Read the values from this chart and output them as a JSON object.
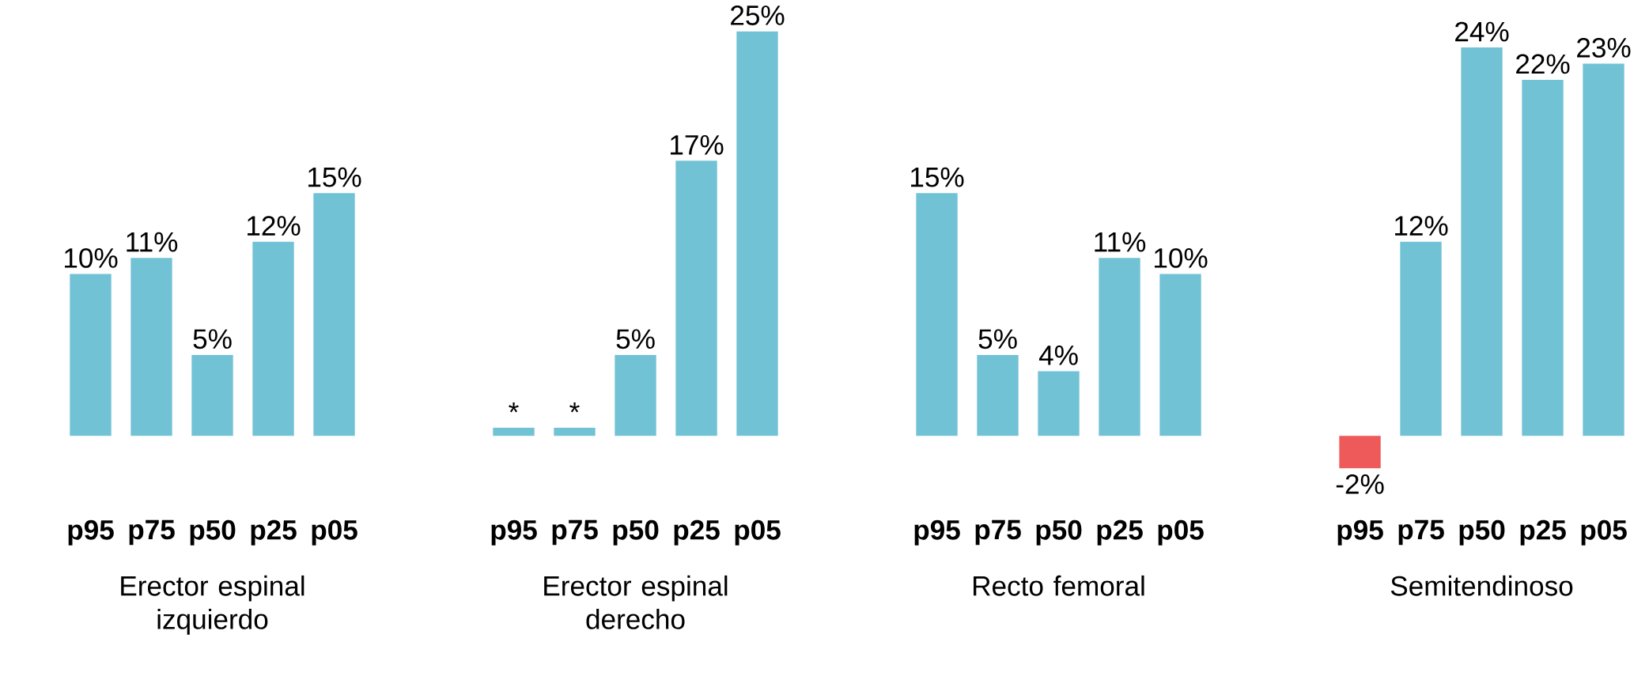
{
  "chart_data": [
    {
      "type": "bar",
      "xlabel": "Erector espinal izquierdo",
      "categories": [
        "p95",
        "p75",
        "p50",
        "p25",
        "p05"
      ],
      "values": [
        10,
        11,
        5,
        12,
        15
      ],
      "colors": [
        "#72c2d6",
        "#72c2d6",
        "#72c2d6",
        "#72c2d6",
        "#72c2d6"
      ],
      "value_labels": [
        "10%",
        "11%",
        "5%",
        "12%",
        "15%"
      ]
    },
    {
      "type": "bar",
      "xlabel": "Erector espinal derecho",
      "categories": [
        "p95",
        "p75",
        "p50",
        "p25",
        "p05"
      ],
      "values": [
        0.5,
        0.5,
        5,
        17,
        25
      ],
      "colors": [
        "#72c2d6",
        "#72c2d6",
        "#72c2d6",
        "#72c2d6",
        "#72c2d6"
      ],
      "value_labels": [
        "*",
        "*",
        "5%",
        "17%",
        "25%"
      ]
    },
    {
      "type": "bar",
      "xlabel": "Recto femoral",
      "categories": [
        "p95",
        "p75",
        "p50",
        "p25",
        "p05"
      ],
      "values": [
        15,
        5,
        4,
        11,
        10
      ],
      "colors": [
        "#72c2d6",
        "#72c2d6",
        "#72c2d6",
        "#72c2d6",
        "#72c2d6"
      ],
      "value_labels": [
        "15%",
        "5%",
        "4%",
        "11%",
        "10%"
      ]
    },
    {
      "type": "bar",
      "xlabel": "Semitendinoso",
      "categories": [
        "p95",
        "p75",
        "p50",
        "p25",
        "p05"
      ],
      "values": [
        -2,
        12,
        24,
        22,
        23
      ],
      "colors": [
        "#ee5a5a",
        "#72c2d6",
        "#72c2d6",
        "#72c2d6",
        "#72c2d6"
      ],
      "value_labels": [
        "-2%",
        "12%",
        "24%",
        "22%",
        "23%"
      ]
    }
  ]
}
